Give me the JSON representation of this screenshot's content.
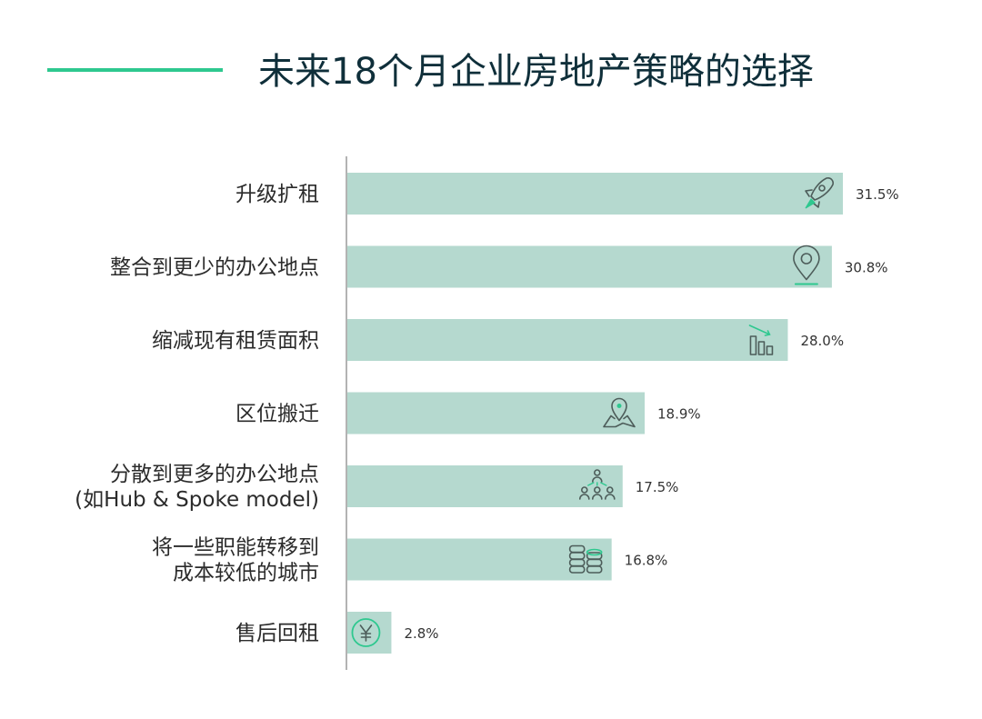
{
  "colors": {
    "bar": "#b5d9cf",
    "accent": "#2ec88f",
    "icon_stroke": "#4d5d5a",
    "title": "#0f2f3a",
    "axis": "#9a9a9a"
  },
  "chart_data": {
    "type": "bar",
    "orientation": "horizontal",
    "title": "未来18个月企业房地产策略的选择",
    "xlabel": "",
    "ylabel": "",
    "xlim": [
      0,
      31.5
    ],
    "grid": false,
    "legend": "none",
    "categories": [
      [
        "升级扩租"
      ],
      [
        "整合到更少的办公地点"
      ],
      [
        "缩减现有租赁面积"
      ],
      [
        "区位搬迁"
      ],
      [
        "分散到更多的办公地点",
        "(如Hub & Spoke model)"
      ],
      [
        "将一些职能转移到",
        "成本较低的城市"
      ],
      [
        "售后回租"
      ]
    ],
    "values": [
      31.5,
      30.8,
      28.0,
      18.9,
      17.5,
      16.8,
      2.8
    ],
    "value_labels": [
      "31.5%",
      "30.8%",
      "28.0%",
      "18.9%",
      "17.5%",
      "16.8%",
      "2.8%"
    ],
    "icons": [
      "rocket-icon",
      "map-pin-icon",
      "bar-decline-icon",
      "map-location-icon",
      "people-network-icon",
      "coin-stack-icon",
      "yen-coin-icon"
    ]
  }
}
